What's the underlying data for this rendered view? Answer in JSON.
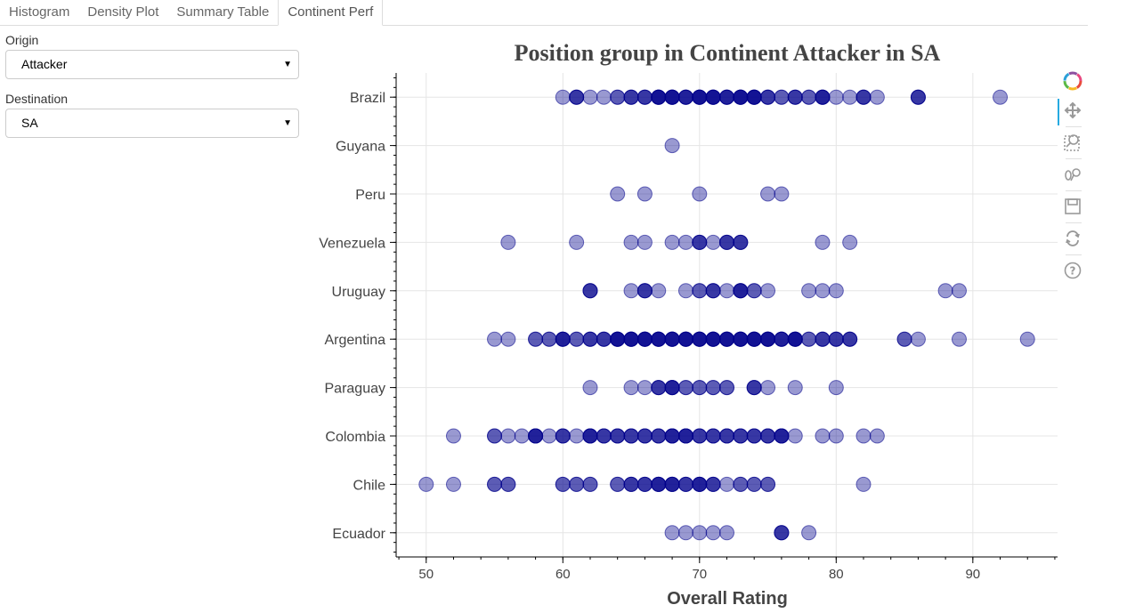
{
  "tabs": [
    {
      "label": "Histogram",
      "active": false
    },
    {
      "label": "Density Plot",
      "active": false
    },
    {
      "label": "Summary Table",
      "active": false
    },
    {
      "label": "Continent Perf",
      "active": true
    }
  ],
  "widgets": {
    "origin": {
      "label": "Origin",
      "value": "Attacker"
    },
    "destination": {
      "label": "Destination",
      "value": "SA"
    }
  },
  "toolbar": [
    "bokeh-logo-icon",
    "pan-icon",
    "box-zoom-icon",
    "wheel-zoom-icon",
    "save-icon",
    "reset-icon",
    "help-icon"
  ],
  "chart_data": {
    "type": "scatter",
    "title": "Position group in Continent  Attacker in SA",
    "xlabel": "Overall Rating",
    "ylabel": "",
    "xlim": [
      47.8,
      96.2
    ],
    "xticks": [
      50,
      60,
      70,
      80,
      90
    ],
    "grid": true,
    "marker_color": "#00008b",
    "categories": [
      "Brazil",
      "Guyana",
      "Peru",
      "Venezuela",
      "Uruguay",
      "Argentina",
      "Paraguay",
      "Colombia",
      "Chile",
      "Ecuador"
    ],
    "series": [
      {
        "category": "Brazil",
        "points": [
          {
            "x": 60,
            "n": 1
          },
          {
            "x": 61,
            "n": 3
          },
          {
            "x": 62,
            "n": 1
          },
          {
            "x": 63,
            "n": 1
          },
          {
            "x": 64,
            "n": 2
          },
          {
            "x": 65,
            "n": 3
          },
          {
            "x": 66,
            "n": 3
          },
          {
            "x": 67,
            "n": 5
          },
          {
            "x": 68,
            "n": 5
          },
          {
            "x": 69,
            "n": 4
          },
          {
            "x": 70,
            "n": 5
          },
          {
            "x": 71,
            "n": 5
          },
          {
            "x": 72,
            "n": 4
          },
          {
            "x": 73,
            "n": 5
          },
          {
            "x": 74,
            "n": 5
          },
          {
            "x": 75,
            "n": 3
          },
          {
            "x": 76,
            "n": 2
          },
          {
            "x": 77,
            "n": 3
          },
          {
            "x": 78,
            "n": 2
          },
          {
            "x": 79,
            "n": 4
          },
          {
            "x": 80,
            "n": 1
          },
          {
            "x": 81,
            "n": 1
          },
          {
            "x": 82,
            "n": 3
          },
          {
            "x": 83,
            "n": 1
          },
          {
            "x": 86,
            "n": 3
          },
          {
            "x": 92,
            "n": 1
          }
        ]
      },
      {
        "category": "Guyana",
        "points": [
          {
            "x": 68,
            "n": 1
          }
        ]
      },
      {
        "category": "Peru",
        "points": [
          {
            "x": 64,
            "n": 1
          },
          {
            "x": 66,
            "n": 1
          },
          {
            "x": 70,
            "n": 1
          },
          {
            "x": 75,
            "n": 1
          },
          {
            "x": 76,
            "n": 1
          }
        ]
      },
      {
        "category": "Venezuela",
        "points": [
          {
            "x": 56,
            "n": 1
          },
          {
            "x": 61,
            "n": 1
          },
          {
            "x": 65,
            "n": 1
          },
          {
            "x": 66,
            "n": 1
          },
          {
            "x": 68,
            "n": 1
          },
          {
            "x": 69,
            "n": 1
          },
          {
            "x": 70,
            "n": 3
          },
          {
            "x": 71,
            "n": 1
          },
          {
            "x": 72,
            "n": 3
          },
          {
            "x": 73,
            "n": 3
          },
          {
            "x": 79,
            "n": 1
          },
          {
            "x": 81,
            "n": 1
          }
        ]
      },
      {
        "category": "Uruguay",
        "points": [
          {
            "x": 62,
            "n": 3
          },
          {
            "x": 65,
            "n": 1
          },
          {
            "x": 66,
            "n": 3
          },
          {
            "x": 67,
            "n": 1
          },
          {
            "x": 69,
            "n": 1
          },
          {
            "x": 70,
            "n": 2
          },
          {
            "x": 71,
            "n": 3
          },
          {
            "x": 72,
            "n": 1
          },
          {
            "x": 73,
            "n": 4
          },
          {
            "x": 74,
            "n": 2
          },
          {
            "x": 75,
            "n": 1
          },
          {
            "x": 78,
            "n": 1
          },
          {
            "x": 79,
            "n": 1
          },
          {
            "x": 80,
            "n": 1
          },
          {
            "x": 88,
            "n": 1
          },
          {
            "x": 89,
            "n": 1
          }
        ]
      },
      {
        "category": "Argentina",
        "points": [
          {
            "x": 55,
            "n": 1
          },
          {
            "x": 56,
            "n": 1
          },
          {
            "x": 58,
            "n": 2
          },
          {
            "x": 59,
            "n": 2
          },
          {
            "x": 60,
            "n": 4
          },
          {
            "x": 61,
            "n": 2
          },
          {
            "x": 62,
            "n": 3
          },
          {
            "x": 63,
            "n": 3
          },
          {
            "x": 64,
            "n": 5
          },
          {
            "x": 65,
            "n": 5
          },
          {
            "x": 66,
            "n": 5
          },
          {
            "x": 67,
            "n": 5
          },
          {
            "x": 68,
            "n": 5
          },
          {
            "x": 69,
            "n": 5
          },
          {
            "x": 70,
            "n": 5
          },
          {
            "x": 71,
            "n": 5
          },
          {
            "x": 72,
            "n": 5
          },
          {
            "x": 73,
            "n": 5
          },
          {
            "x": 74,
            "n": 5
          },
          {
            "x": 75,
            "n": 5
          },
          {
            "x": 76,
            "n": 4
          },
          {
            "x": 77,
            "n": 5
          },
          {
            "x": 78,
            "n": 2
          },
          {
            "x": 79,
            "n": 3
          },
          {
            "x": 80,
            "n": 3
          },
          {
            "x": 81,
            "n": 3
          },
          {
            "x": 85,
            "n": 2
          },
          {
            "x": 86,
            "n": 1
          },
          {
            "x": 89,
            "n": 1
          },
          {
            "x": 94,
            "n": 1
          }
        ]
      },
      {
        "category": "Paraguay",
        "points": [
          {
            "x": 62,
            "n": 1
          },
          {
            "x": 65,
            "n": 1
          },
          {
            "x": 66,
            "n": 1
          },
          {
            "x": 67,
            "n": 3
          },
          {
            "x": 68,
            "n": 4
          },
          {
            "x": 69,
            "n": 2
          },
          {
            "x": 70,
            "n": 2
          },
          {
            "x": 71,
            "n": 2
          },
          {
            "x": 72,
            "n": 2
          },
          {
            "x": 74,
            "n": 3
          },
          {
            "x": 75,
            "n": 1
          },
          {
            "x": 77,
            "n": 1
          },
          {
            "x": 80,
            "n": 1
          }
        ]
      },
      {
        "category": "Colombia",
        "points": [
          {
            "x": 52,
            "n": 1
          },
          {
            "x": 55,
            "n": 2
          },
          {
            "x": 56,
            "n": 1
          },
          {
            "x": 57,
            "n": 1
          },
          {
            "x": 58,
            "n": 4
          },
          {
            "x": 59,
            "n": 1
          },
          {
            "x": 60,
            "n": 3
          },
          {
            "x": 61,
            "n": 1
          },
          {
            "x": 62,
            "n": 4
          },
          {
            "x": 63,
            "n": 3
          },
          {
            "x": 64,
            "n": 3
          },
          {
            "x": 65,
            "n": 3
          },
          {
            "x": 66,
            "n": 3
          },
          {
            "x": 67,
            "n": 3
          },
          {
            "x": 68,
            "n": 4
          },
          {
            "x": 69,
            "n": 4
          },
          {
            "x": 70,
            "n": 3
          },
          {
            "x": 71,
            "n": 3
          },
          {
            "x": 72,
            "n": 3
          },
          {
            "x": 73,
            "n": 3
          },
          {
            "x": 74,
            "n": 3
          },
          {
            "x": 75,
            "n": 3
          },
          {
            "x": 76,
            "n": 4
          },
          {
            "x": 77,
            "n": 1
          },
          {
            "x": 79,
            "n": 1
          },
          {
            "x": 80,
            "n": 1
          },
          {
            "x": 82,
            "n": 1
          },
          {
            "x": 83,
            "n": 1
          }
        ]
      },
      {
        "category": "Chile",
        "points": [
          {
            "x": 50,
            "n": 1
          },
          {
            "x": 52,
            "n": 1
          },
          {
            "x": 55,
            "n": 2
          },
          {
            "x": 56,
            "n": 2
          },
          {
            "x": 60,
            "n": 2
          },
          {
            "x": 61,
            "n": 2
          },
          {
            "x": 62,
            "n": 2
          },
          {
            "x": 64,
            "n": 2
          },
          {
            "x": 65,
            "n": 3
          },
          {
            "x": 66,
            "n": 3
          },
          {
            "x": 67,
            "n": 4
          },
          {
            "x": 68,
            "n": 4
          },
          {
            "x": 69,
            "n": 3
          },
          {
            "x": 70,
            "n": 4
          },
          {
            "x": 71,
            "n": 3
          },
          {
            "x": 72,
            "n": 1
          },
          {
            "x": 73,
            "n": 2
          },
          {
            "x": 74,
            "n": 2
          },
          {
            "x": 75,
            "n": 2
          },
          {
            "x": 82,
            "n": 1
          }
        ]
      },
      {
        "category": "Ecuador",
        "points": [
          {
            "x": 68,
            "n": 1
          },
          {
            "x": 69,
            "n": 1
          },
          {
            "x": 70,
            "n": 1
          },
          {
            "x": 71,
            "n": 1
          },
          {
            "x": 72,
            "n": 1
          },
          {
            "x": 76,
            "n": 3
          },
          {
            "x": 78,
            "n": 1
          }
        ]
      }
    ]
  }
}
